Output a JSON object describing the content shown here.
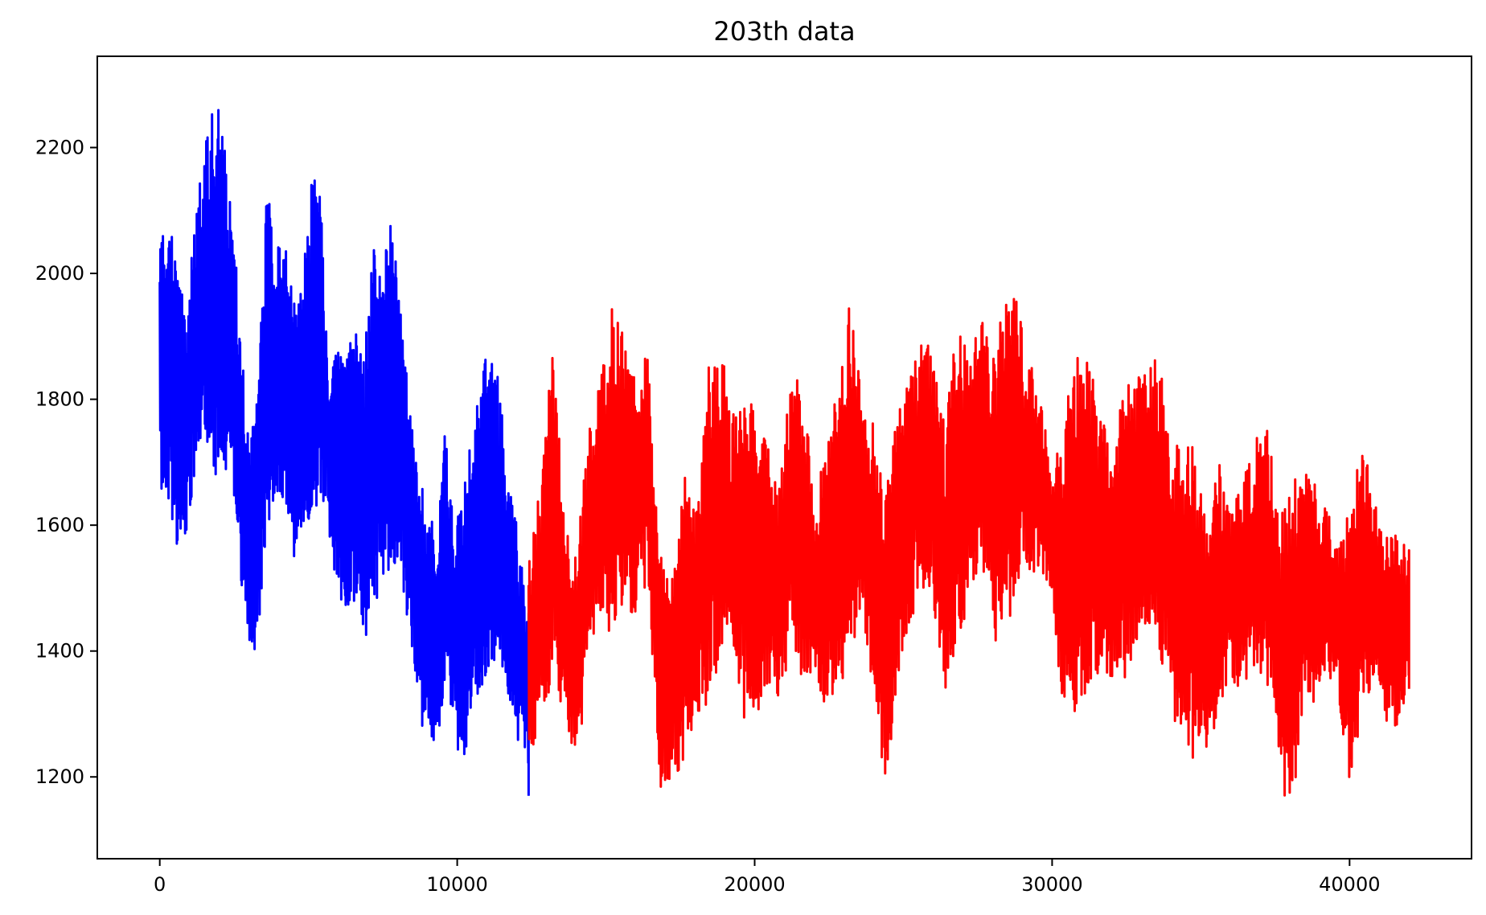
{
  "chart_data": {
    "type": "line",
    "title": "203th data",
    "xlabel": "",
    "ylabel": "",
    "xlim": [
      -2100,
      44100
    ],
    "ylim": [
      1070,
      2345
    ],
    "xticks": [
      0,
      10000,
      20000,
      30000,
      40000
    ],
    "yticks": [
      1200,
      1400,
      1600,
      1800,
      2000,
      2200
    ],
    "grid": false,
    "legend": "none",
    "series": [
      {
        "color": "#0000ff",
        "x": [
          0,
          300,
          600,
          900,
          1200,
          1500,
          1800,
          2100,
          2400,
          2700,
          3000,
          3300,
          3600,
          3900,
          4200,
          4500,
          4800,
          5100,
          5400,
          5700,
          6000,
          6300,
          6600,
          6900,
          7200,
          7500,
          7800,
          8100,
          8400,
          8700,
          9000,
          9300,
          9600,
          9900,
          10200,
          10500,
          10800,
          11100,
          11400,
          11700,
          12000,
          12400
        ],
        "ymin": [
          1660,
          1630,
          1560,
          1590,
          1700,
          1750,
          1670,
          1680,
          1700,
          1510,
          1370,
          1420,
          1590,
          1630,
          1620,
          1550,
          1580,
          1600,
          1650,
          1580,
          1470,
          1470,
          1480,
          1420,
          1470,
          1520,
          1480,
          1520,
          1420,
          1300,
          1220,
          1250,
          1320,
          1260,
          1210,
          1320,
          1340,
          1360,
          1400,
          1330,
          1250,
          1170
        ],
        "ymax": [
          2080,
          2110,
          1990,
          1960,
          2110,
          2200,
          2290,
          2240,
          2130,
          1920,
          1740,
          1840,
          2160,
          2040,
          2060,
          1960,
          2040,
          2170,
          2120,
          1860,
          1880,
          1880,
          1910,
          1890,
          2050,
          1980,
          2170,
          1960,
          1780,
          1680,
          1640,
          1590,
          1760,
          1600,
          1650,
          1750,
          1830,
          1900,
          1830,
          1680,
          1600,
          1460
        ]
      },
      {
        "color": "#ff0000",
        "x": [
          12400,
          12800,
          13200,
          13600,
          14000,
          14400,
          14800,
          15200,
          15600,
          16000,
          16400,
          16800,
          17200,
          17600,
          18000,
          18400,
          18800,
          19200,
          19600,
          20000,
          20400,
          20800,
          21200,
          21600,
          22000,
          22400,
          22800,
          23200,
          23600,
          24000,
          24400,
          24800,
          25200,
          25600,
          26000,
          26400,
          26800,
          27200,
          27600,
          28000,
          28400,
          28800,
          29200,
          29600,
          30000,
          30400,
          30800,
          31200,
          31600,
          32000,
          32400,
          32800,
          33200,
          33600,
          34000,
          34400,
          34800,
          35200,
          35600,
          36000,
          36400,
          36800,
          37200,
          37600,
          38000,
          38400,
          38800,
          39200,
          39600,
          40000,
          40400,
          40800,
          41200,
          41600,
          42000
        ],
        "ymin": [
          1210,
          1300,
          1350,
          1240,
          1210,
          1370,
          1460,
          1420,
          1470,
          1450,
          1520,
          1170,
          1200,
          1210,
          1290,
          1300,
          1380,
          1430,
          1270,
          1280,
          1340,
          1320,
          1380,
          1330,
          1380,
          1290,
          1320,
          1380,
          1460,
          1320,
          1180,
          1350,
          1440,
          1500,
          1470,
          1340,
          1420,
          1440,
          1540,
          1400,
          1430,
          1480,
          1520,
          1530,
          1460,
          1290,
          1300,
          1340,
          1370,
          1350,
          1340,
          1400,
          1440,
          1400,
          1300,
          1260,
          1210,
          1240,
          1300,
          1360,
          1320,
          1380,
          1350,
          1220,
          1120,
          1300,
          1320,
          1360,
          1330,
          1180,
          1300,
          1360,
          1260,
          1280,
          1340
        ],
        "ymax": [
          1550,
          1680,
          1880,
          1680,
          1550,
          1750,
          1850,
          1960,
          1900,
          1850,
          1880,
          1560,
          1520,
          1690,
          1620,
          1840,
          1920,
          1770,
          1820,
          1790,
          1770,
          1650,
          1840,
          1840,
          1640,
          1720,
          1850,
          1960,
          1800,
          1760,
          1640,
          1790,
          1860,
          1910,
          1870,
          1760,
          1920,
          1870,
          1930,
          1870,
          1960,
          1960,
          1860,
          1830,
          1680,
          1770,
          1880,
          1880,
          1800,
          1720,
          1810,
          1840,
          1880,
          1870,
          1760,
          1740,
          1720,
          1590,
          1700,
          1640,
          1670,
          1730,
          1790,
          1610,
          1680,
          1690,
          1670,
          1640,
          1560,
          1630,
          1740,
          1650,
          1600,
          1590,
          1560
        ]
      }
    ]
  }
}
